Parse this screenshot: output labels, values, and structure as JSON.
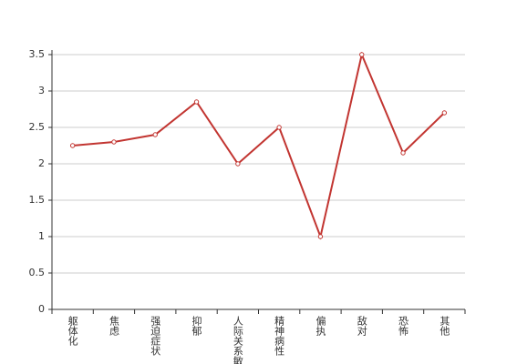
{
  "chart_data": {
    "type": "line",
    "categories": [
      "躯体化",
      "焦虑",
      "强迫症状",
      "抑郁",
      "人际关系敏感",
      "精神病性",
      "偏执",
      "敌对",
      "恐怖",
      "其他"
    ],
    "values": [
      2.25,
      2.3,
      2.4,
      2.85,
      2.0,
      2.5,
      1.0,
      3.5,
      2.15,
      2.7
    ],
    "color": "#c23531",
    "ylim": [
      0,
      3.5
    ],
    "yticks": [
      0,
      0.5,
      1,
      1.5,
      2,
      2.5,
      3,
      3.5
    ],
    "grid": true
  }
}
